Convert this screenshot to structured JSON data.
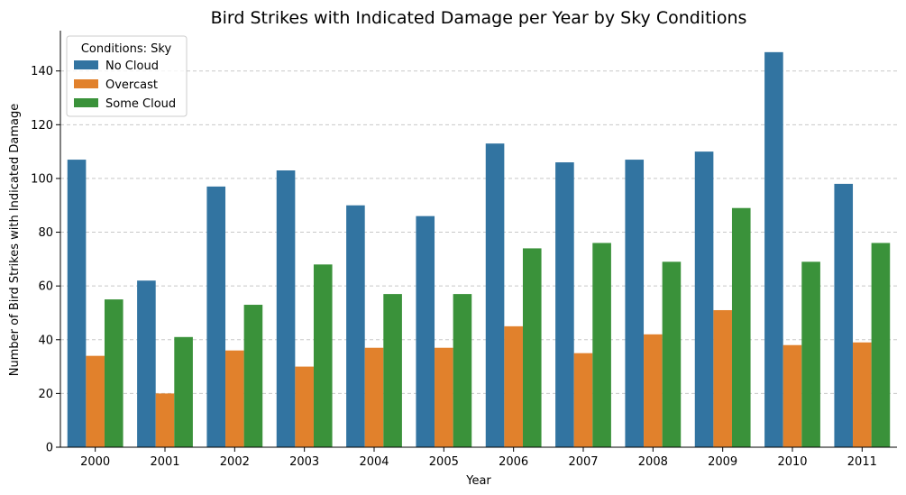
{
  "chart_data": {
    "type": "bar",
    "title": "Bird Strikes with Indicated Damage per Year by Sky Conditions",
    "xlabel": "Year",
    "ylabel": "Number of Bird Strikes with Indicated Damage",
    "categories": [
      "2000",
      "2001",
      "2002",
      "2003",
      "2004",
      "2005",
      "2006",
      "2007",
      "2008",
      "2009",
      "2010",
      "2011"
    ],
    "ylim": [
      0,
      155
    ],
    "yticks": [
      0,
      20,
      40,
      60,
      80,
      100,
      120,
      140
    ],
    "grid": "horizontal dashed",
    "legend": {
      "title": "Conditions: Sky",
      "placement": "top-left"
    },
    "series": [
      {
        "name": "No Cloud",
        "color": "#3274a1",
        "values": [
          107,
          62,
          97,
          103,
          90,
          86,
          113,
          106,
          107,
          110,
          147,
          98
        ]
      },
      {
        "name": "Overcast",
        "color": "#e1812c",
        "values": [
          34,
          20,
          36,
          30,
          37,
          37,
          45,
          35,
          42,
          51,
          38,
          39
        ]
      },
      {
        "name": "Some Cloud",
        "color": "#3a923a",
        "values": [
          55,
          41,
          53,
          68,
          57,
          57,
          74,
          76,
          69,
          89,
          69,
          76
        ]
      }
    ]
  }
}
